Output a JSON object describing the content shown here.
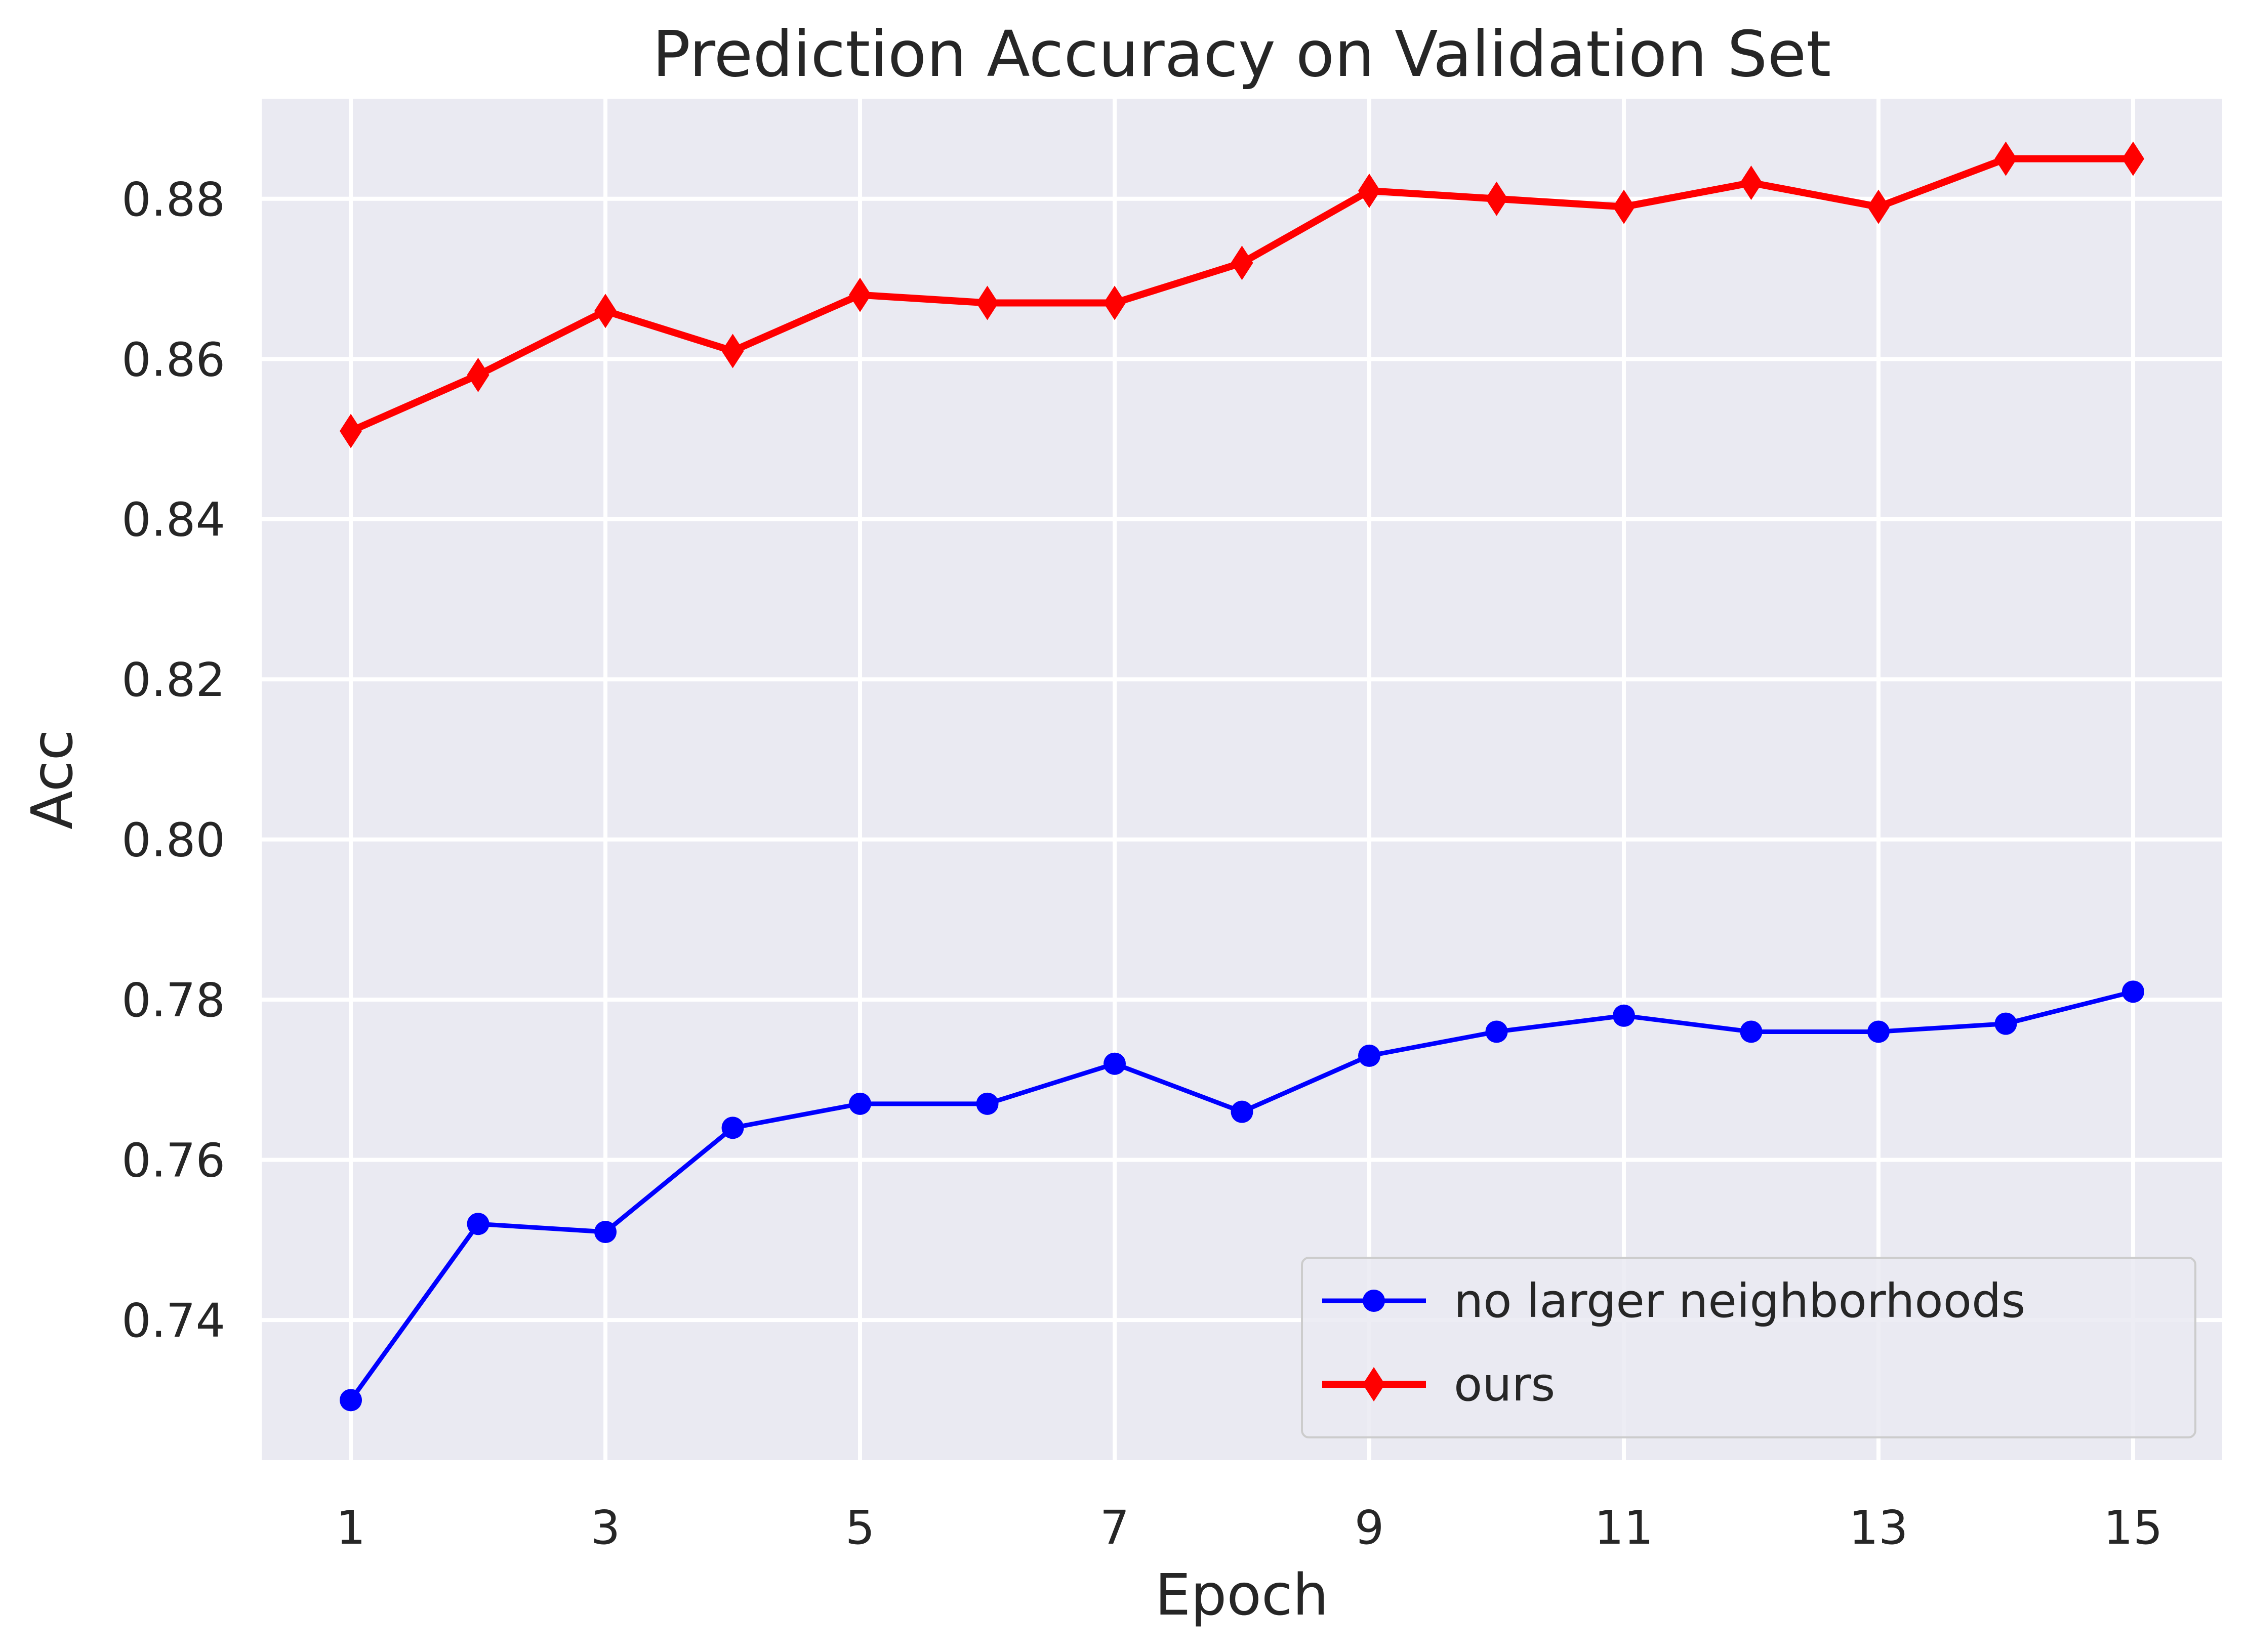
{
  "chart_data": {
    "type": "line",
    "title": "Prediction Accuracy on Validation Set",
    "xlabel": "Epoch",
    "ylabel": "Acc",
    "x": [
      1,
      2,
      3,
      4,
      5,
      6,
      7,
      8,
      9,
      10,
      11,
      12,
      13,
      14,
      15
    ],
    "xticks": [
      1,
      3,
      5,
      7,
      9,
      11,
      13,
      15
    ],
    "xtick_labels": [
      "1",
      "3",
      "5",
      "7",
      "9",
      "11",
      "13",
      "15"
    ],
    "yticks": [
      0.74,
      0.76,
      0.78,
      0.8,
      0.82,
      0.84,
      0.86,
      0.88
    ],
    "ytick_labels": [
      "0.74",
      "0.76",
      "0.78",
      "0.80",
      "0.82",
      "0.84",
      "0.86",
      "0.88"
    ],
    "xlim": [
      0.3,
      15.7
    ],
    "ylim": [
      0.7225,
      0.8925
    ],
    "grid": true,
    "background": "#eaeaf2",
    "legend_position": "lower-right",
    "series": [
      {
        "name": "no larger neighborhoods",
        "color": "#0000ff",
        "marker": "circle",
        "values": [
          0.73,
          0.752,
          0.751,
          0.764,
          0.767,
          0.767,
          0.772,
          0.766,
          0.773,
          0.776,
          0.778,
          0.776,
          0.776,
          0.777,
          0.781
        ]
      },
      {
        "name": "ours",
        "color": "#ff0000",
        "marker": "thin-diamond",
        "values": [
          0.851,
          0.858,
          0.866,
          0.861,
          0.868,
          0.867,
          0.867,
          0.872,
          0.881,
          0.88,
          0.879,
          0.882,
          0.879,
          0.885,
          0.885
        ]
      }
    ]
  }
}
